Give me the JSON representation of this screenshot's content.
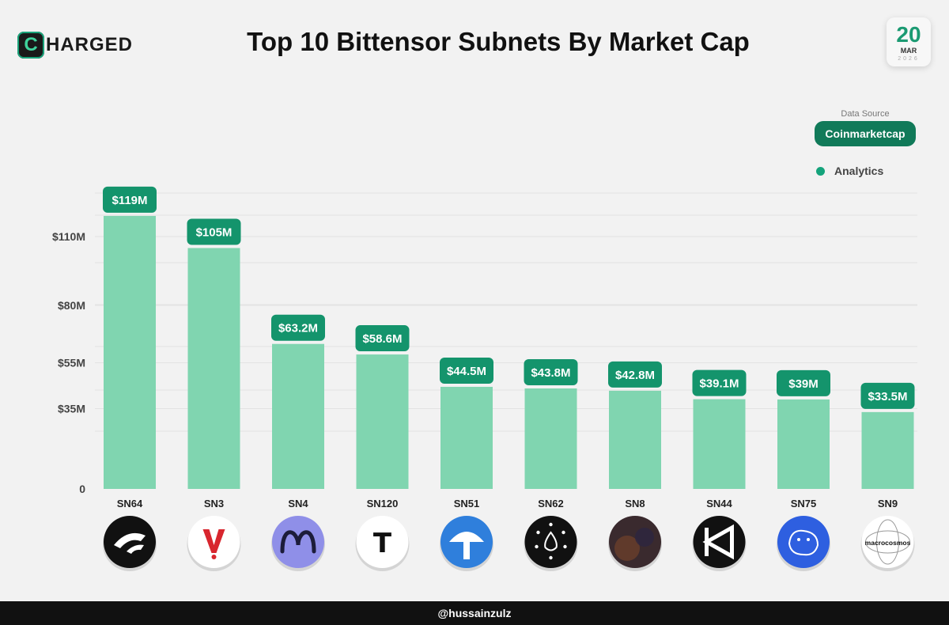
{
  "brand": {
    "logo_letter": "C",
    "logo_text": "HARGED"
  },
  "title": "Top 10 Bittensor Subnets By Market Cap",
  "date": {
    "day": "20",
    "month": "MAR",
    "year": "2026"
  },
  "data_source": {
    "label": "Data Source",
    "value": "Coinmarketcap"
  },
  "legend": {
    "label": "Analytics",
    "color": "#14a37b"
  },
  "footer": {
    "handle": "@hussainzulz"
  },
  "colors": {
    "bar": "#80d5b0",
    "label_bg": "#14946c",
    "label_text": "#ffffff",
    "grid": "#e3e3e3"
  },
  "chart_data": {
    "type": "bar",
    "title": "Top 10 Bittensor Subnets By Market Cap",
    "categories": [
      "SN64",
      "SN3",
      "SN4",
      "SN120",
      "SN51",
      "SN62",
      "SN8",
      "SN44",
      "SN75",
      "SN9"
    ],
    "values": [
      119,
      105,
      63.2,
      58.6,
      44.5,
      43.8,
      42.8,
      39.1,
      39,
      33.5
    ],
    "data_labels": [
      "$119M",
      "$105M",
      "$63.2M",
      "$58.6M",
      "$44.5M",
      "$43.8M",
      "$42.8M",
      "$39.1M",
      "$39M",
      "$33.5M"
    ],
    "yticks": [
      {
        "value": 0,
        "label": "0"
      },
      {
        "value": 35,
        "label": "$35M"
      },
      {
        "value": 55,
        "label": "$55M"
      },
      {
        "value": 80,
        "label": "$80M"
      },
      {
        "value": 110,
        "label": "$110M"
      }
    ],
    "unit": "M USD",
    "grid": true,
    "legend_position": "top-right",
    "icons": [
      "sn64-logo-icon",
      "sn3-logo-icon",
      "sn4-logo-icon",
      "sn120-logo-icon",
      "sn51-logo-icon",
      "sn62-logo-icon",
      "sn8-logo-icon",
      "sn44-logo-icon",
      "sn75-logo-icon",
      "sn9-macrocosmos-logo-icon"
    ],
    "icon_texts": {
      "sn120": "T",
      "sn9": "macrocosmos"
    }
  }
}
